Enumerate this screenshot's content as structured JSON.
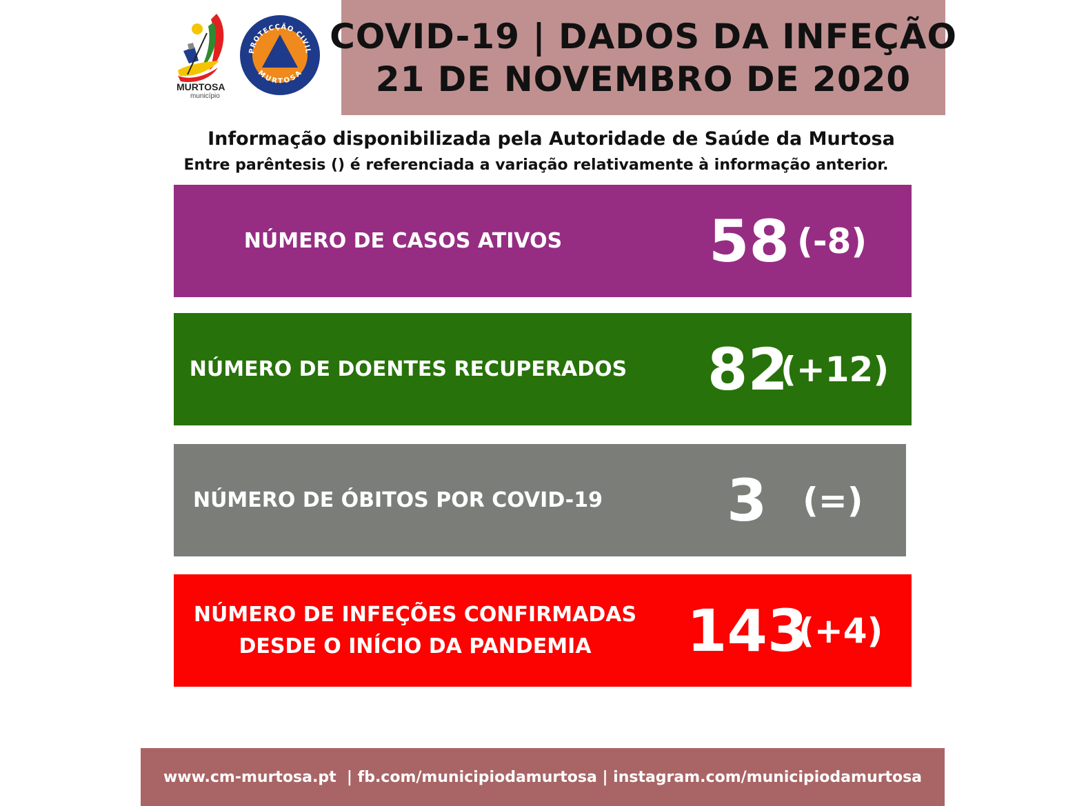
{
  "header": {
    "title_line1": "COVID-19 | DADOS DA INFEÇÃO",
    "title_line2": "21 DE NOVEMBRO DE 2020",
    "colors": {
      "title_bg": "#c09091",
      "title_text": "#111111"
    }
  },
  "logos": {
    "murtosa": {
      "icon": "murtosa-municipality-logo",
      "text": "MURTOSA",
      "subtext": "município"
    },
    "protecao_civil": {
      "icon": "protecao-civil-emblem",
      "ring_text_top": "PROTECÇÃO CIVIL",
      "ring_text_bottom": "MURTOSA"
    }
  },
  "info": {
    "line1": "Informação disponibilizada pela Autoridade de Saúde da Murtosa",
    "line2": "Entre parêntesis () é referenciada a variação relativamente à informação anterior."
  },
  "stats": [
    {
      "label": "NÚMERO DE CASOS ATIVOS",
      "value": "58",
      "variation": "(-8)",
      "color": "#962d83"
    },
    {
      "label": "NÚMERO DE DOENTES RECUPERADOS",
      "value": "82",
      "variation": "(+12)",
      "color": "#27720a"
    },
    {
      "label": "NÚMERO DE ÓBITOS POR COVID-19",
      "value": "3",
      "variation": "(=)",
      "color": "#7b7e78"
    },
    {
      "label_line1": "NÚMERO DE INFEÇÕES CONFIRMADAS",
      "label_line2": "DESDE O INÍCIO DA PANDEMIA",
      "value": "143",
      "variation": "(+4)",
      "color": "#fc0200"
    }
  ],
  "footer": {
    "text": "www.cm-murtosa.pt  | fb.com/municipiodamurtosa | instagram.com/municipiodamurtosa",
    "color": "#a96566"
  }
}
